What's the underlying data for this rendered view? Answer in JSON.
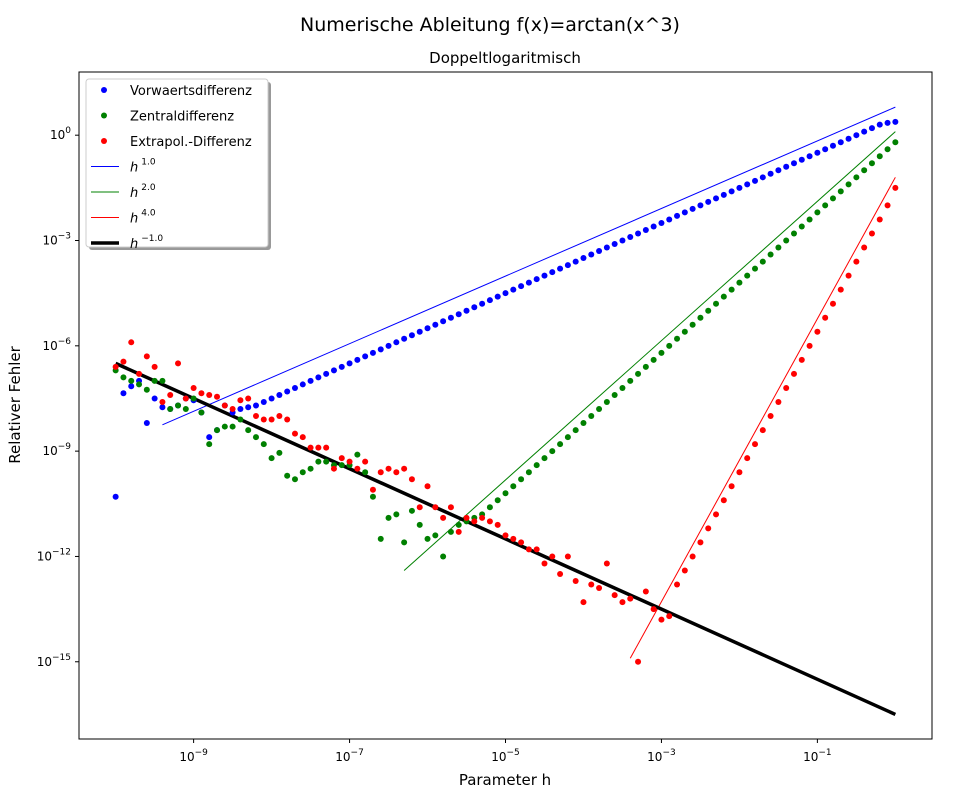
{
  "chart_data": {
    "type": "scatter",
    "suptitle": "Numerische Ableitung f(x)=arctan(x^3)",
    "title": "Doppeltlogaritmisch",
    "xlabel": "Parameter h",
    "ylabel": "Relativer Fehler",
    "xscale": "log",
    "yscale": "log",
    "xlim_log10": [
      -10.47,
      0.47
    ],
    "ylim_log10": [
      -17.2,
      1.8
    ],
    "xticks": [
      {
        "exp": -9,
        "label": "10",
        "sup": "−9"
      },
      {
        "exp": -7,
        "label": "10",
        "sup": "−7"
      },
      {
        "exp": -5,
        "label": "10",
        "sup": "−5"
      },
      {
        "exp": -3,
        "label": "10",
        "sup": "−3"
      },
      {
        "exp": -1,
        "label": "10",
        "sup": "−1"
      }
    ],
    "yticks": [
      {
        "exp": 0,
        "label": "10",
        "sup": "0"
      },
      {
        "exp": -3,
        "label": "10",
        "sup": "−3"
      },
      {
        "exp": -6,
        "label": "10",
        "sup": "−6"
      },
      {
        "exp": -9,
        "label": "10",
        "sup": "−9"
      },
      {
        "exp": -12,
        "label": "10",
        "sup": "−12"
      },
      {
        "exp": -15,
        "label": "10",
        "sup": "−15"
      }
    ],
    "grid": false,
    "legend_position": "upper-left",
    "series": [
      {
        "name": "Vorwaertsdifferenz",
        "kind": "points",
        "color": "#0000ff",
        "log_x": [
          -10.0,
          -9.9,
          -9.8,
          -9.7,
          -9.6,
          -9.5,
          -9.4,
          -9.3,
          -9.2,
          -9.1,
          -9.0,
          -8.9,
          -8.8,
          -8.7,
          -8.6,
          -8.5,
          -8.4,
          -8.3,
          -8.2,
          -8.1,
          -8.0,
          -7.9,
          -7.8,
          -7.7,
          -7.6,
          -7.5,
          -7.4,
          -7.3,
          -7.2,
          -7.1,
          -7.0,
          -6.9,
          -6.8,
          -6.7,
          -6.6,
          -6.5,
          -6.4,
          -6.3,
          -6.2,
          -6.1,
          -6.0,
          -5.9,
          -5.8,
          -5.7,
          -5.6,
          -5.5,
          -5.4,
          -5.3,
          -5.2,
          -5.1,
          -5.0,
          -4.9,
          -4.8,
          -4.7,
          -4.6,
          -4.5,
          -4.4,
          -4.3,
          -4.2,
          -4.1,
          -4.0,
          -3.9,
          -3.8,
          -3.7,
          -3.6,
          -3.5,
          -3.4,
          -3.3,
          -3.2,
          -3.1,
          -3.0,
          -2.9,
          -2.8,
          -2.7,
          -2.6,
          -2.5,
          -2.4,
          -2.3,
          -2.2,
          -2.1,
          -2.0,
          -1.9,
          -1.8,
          -1.7,
          -1.6,
          -1.5,
          -1.4,
          -1.3,
          -1.2,
          -1.1,
          -1.0,
          -0.9,
          -0.8,
          -0.7,
          -0.6,
          -0.5,
          -0.4,
          -0.3,
          -0.2,
          -0.1,
          0.0
        ],
        "log_y": [
          -10.3,
          -7.35,
          -7.15,
          -7.0,
          -8.2,
          -7.5,
          -7.75,
          -7.8,
          -7.7,
          -7.5,
          -7.55,
          -7.9,
          -8.6,
          -8.4,
          -7.7,
          -7.9,
          -7.8,
          -7.75,
          -7.7,
          -7.6,
          -7.5,
          -7.4,
          -7.3,
          -7.2,
          -7.1,
          -7.0,
          -6.9,
          -6.8,
          -6.7,
          -6.6,
          -6.5,
          -6.4,
          -6.3,
          -6.2,
          -6.1,
          -6.0,
          -5.9,
          -5.8,
          -5.7,
          -5.6,
          -5.5,
          -5.4,
          -5.3,
          -5.2,
          -5.1,
          -5.0,
          -4.9,
          -4.8,
          -4.7,
          -4.6,
          -4.5,
          -4.4,
          -4.3,
          -4.2,
          -4.1,
          -4.0,
          -3.9,
          -3.8,
          -3.7,
          -3.6,
          -3.5,
          -3.4,
          -3.3,
          -3.2,
          -3.1,
          -3.0,
          -2.9,
          -2.8,
          -2.7,
          -2.6,
          -2.5,
          -2.4,
          -2.3,
          -2.2,
          -2.1,
          -2.0,
          -1.9,
          -1.8,
          -1.7,
          -1.6,
          -1.5,
          -1.4,
          -1.3,
          -1.2,
          -1.1,
          -1.0,
          -0.9,
          -0.8,
          -0.7,
          -0.6,
          -0.5,
          -0.4,
          -0.3,
          -0.2,
          -0.1,
          0.0,
          0.1,
          0.2,
          0.3,
          0.35,
          0.38
        ]
      },
      {
        "name": "Zentraldifferenz",
        "kind": "points",
        "color": "#008000",
        "log_x": [
          -10.0,
          -9.9,
          -9.8,
          -9.7,
          -9.6,
          -9.5,
          -9.4,
          -9.3,
          -9.2,
          -9.1,
          -9.0,
          -8.9,
          -8.8,
          -8.7,
          -8.6,
          -8.5,
          -8.4,
          -8.3,
          -8.2,
          -8.1,
          -8.0,
          -7.9,
          -7.8,
          -7.7,
          -7.6,
          -7.5,
          -7.4,
          -7.3,
          -7.2,
          -7.1,
          -7.0,
          -6.9,
          -6.8,
          -6.7,
          -6.6,
          -6.5,
          -6.4,
          -6.3,
          -6.2,
          -6.1,
          -6.0,
          -5.9,
          -5.8,
          -5.7,
          -5.6,
          -5.5,
          -5.4,
          -5.3,
          -5.2,
          -5.1,
          -5.0,
          -4.9,
          -4.8,
          -4.7,
          -4.6,
          -4.5,
          -4.4,
          -4.3,
          -4.2,
          -4.1,
          -4.0,
          -3.9,
          -3.8,
          -3.7,
          -3.6,
          -3.5,
          -3.4,
          -3.3,
          -3.2,
          -3.1,
          -3.0,
          -2.9,
          -2.8,
          -2.7,
          -2.6,
          -2.5,
          -2.4,
          -2.3,
          -2.2,
          -2.1,
          -2.0,
          -1.9,
          -1.8,
          -1.7,
          -1.6,
          -1.5,
          -1.4,
          -1.3,
          -1.2,
          -1.1,
          -1.0,
          -0.9,
          -0.8,
          -0.7,
          -0.6,
          -0.5,
          -0.4,
          -0.3,
          -0.2,
          -0.1,
          0.0
        ],
        "log_y": [
          -6.7,
          -6.9,
          -7.0,
          -7.1,
          -7.25,
          -7.0,
          -7.0,
          -7.8,
          -7.7,
          -7.8,
          -7.5,
          -7.9,
          -8.8,
          -8.4,
          -8.3,
          -8.3,
          -8.1,
          -8.4,
          -8.6,
          -8.8,
          -9.2,
          -9.05,
          -9.7,
          -9.8,
          -9.6,
          -9.5,
          -9.3,
          -9.3,
          -9.4,
          -9.4,
          -9.4,
          -9.1,
          -9.6,
          -10.3,
          -11.5,
          -10.9,
          -10.8,
          -11.6,
          -10.7,
          -11.1,
          -11.5,
          -11.4,
          -12.0,
          -11.3,
          -11.1,
          -11.0,
          -10.9,
          -10.8,
          -10.6,
          -10.4,
          -10.2,
          -10.0,
          -9.8,
          -9.6,
          -9.4,
          -9.2,
          -9.0,
          -8.8,
          -8.6,
          -8.4,
          -8.2,
          -8.0,
          -7.8,
          -7.6,
          -7.4,
          -7.2,
          -7.0,
          -6.8,
          -6.6,
          -6.4,
          -6.2,
          -6.0,
          -5.8,
          -5.6,
          -5.4,
          -5.2,
          -5.0,
          -4.8,
          -4.6,
          -4.4,
          -4.2,
          -4.0,
          -3.8,
          -3.6,
          -3.4,
          -3.2,
          -3.0,
          -2.8,
          -2.6,
          -2.4,
          -2.2,
          -2.0,
          -1.8,
          -1.6,
          -1.4,
          -1.2,
          -1.0,
          -0.8,
          -0.6,
          -0.4,
          -0.2
        ]
      },
      {
        "name": "Extrapol.-Differenz",
        "kind": "points",
        "color": "#ff0000",
        "log_x": [
          -10.0,
          -9.9,
          -9.8,
          -9.7,
          -9.6,
          -9.5,
          -9.4,
          -9.3,
          -9.2,
          -9.1,
          -9.0,
          -8.9,
          -8.8,
          -8.7,
          -8.6,
          -8.5,
          -8.4,
          -8.3,
          -8.2,
          -8.1,
          -8.0,
          -7.9,
          -7.8,
          -7.7,
          -7.6,
          -7.5,
          -7.4,
          -7.3,
          -7.2,
          -7.1,
          -7.0,
          -6.9,
          -6.8,
          -6.7,
          -6.6,
          -6.5,
          -6.4,
          -6.3,
          -6.2,
          -6.1,
          -6.0,
          -5.9,
          -5.8,
          -5.7,
          -5.6,
          -5.5,
          -5.4,
          -5.3,
          -5.2,
          -5.1,
          -5.0,
          -4.9,
          -4.8,
          -4.7,
          -4.6,
          -4.5,
          -4.4,
          -4.3,
          -4.2,
          -4.1,
          -4.0,
          -3.9,
          -3.8,
          -3.7,
          -3.6,
          -3.5,
          -3.4,
          -3.3,
          -3.2,
          -3.1,
          -3.0,
          -2.9,
          -2.8,
          -2.7,
          -2.6,
          -2.5,
          -2.4,
          -2.3,
          -2.2,
          -2.1,
          -2.0,
          -1.9,
          -1.8,
          -1.7,
          -1.6,
          -1.5,
          -1.4,
          -1.3,
          -1.2,
          -1.1,
          -1.0,
          -0.9,
          -0.8,
          -0.7,
          -0.6,
          -0.5,
          -0.4,
          -0.3,
          -0.2,
          -0.1,
          0.0
        ],
        "log_y": [
          -6.6,
          -6.45,
          -5.9,
          -6.8,
          -6.3,
          -6.6,
          -7.6,
          -7.4,
          -6.5,
          -7.5,
          -7.2,
          -7.35,
          -7.4,
          -7.45,
          -7.7,
          -7.8,
          -7.55,
          -7.5,
          -8.0,
          -8.1,
          -8.1,
          -8.0,
          -8.1,
          -8.5,
          -8.6,
          -8.9,
          -8.9,
          -8.9,
          -9.5,
          -9.2,
          -9.3,
          -9.5,
          -9.3,
          -10.1,
          -9.6,
          -9.5,
          -9.6,
          -9.5,
          -9.8,
          -10.6,
          -10.0,
          -10.6,
          -10.9,
          -10.6,
          -11.3,
          -10.9,
          -11.0,
          -10.9,
          -11.0,
          -11.1,
          -11.4,
          -11.5,
          -11.6,
          -11.8,
          -11.8,
          -12.2,
          -12.0,
          -12.5,
          -12.0,
          -12.7,
          -13.3,
          -12.8,
          -12.9,
          -12.2,
          -13.1,
          -13.3,
          -13.2,
          -15.0,
          -13.0,
          -13.5,
          -13.8,
          -13.7,
          -12.8,
          -12.4,
          -12.0,
          -11.6,
          -11.2,
          -10.8,
          -10.4,
          -10.0,
          -9.6,
          -9.2,
          -8.8,
          -8.4,
          -8.0,
          -7.6,
          -7.2,
          -6.8,
          -6.4,
          -6.0,
          -5.6,
          -5.2,
          -4.8,
          -4.4,
          -4.0,
          -3.6,
          -3.2,
          -2.8,
          -2.4,
          -2.0,
          -1.5
        ]
      },
      {
        "name": "h^1.0",
        "legend_base": "h",
        "legend_exp": "1.0",
        "kind": "line",
        "color": "#0000ff",
        "width": 1,
        "log_x": [
          -9.4,
          0.0
        ],
        "log_y": [
          -8.25,
          0.8
        ]
      },
      {
        "name": "h^2.0",
        "legend_base": "h",
        "legend_exp": "2.0",
        "kind": "line",
        "color": "#008000",
        "width": 1,
        "log_x": [
          -6.3,
          0.0
        ],
        "log_y": [
          -12.4,
          0.1
        ]
      },
      {
        "name": "h^4.0",
        "legend_base": "h",
        "legend_exp": "4.0",
        "kind": "line",
        "color": "#ff0000",
        "width": 1,
        "log_x": [
          -3.4,
          0.0
        ],
        "log_y": [
          -14.9,
          -1.2
        ]
      },
      {
        "name": "h^-1.0",
        "legend_base": "h",
        "legend_exp": "−1.0",
        "kind": "line",
        "color": "#000000",
        "width": 3.5,
        "log_x": [
          -10.0,
          0.0
        ],
        "log_y": [
          -6.5,
          -16.5
        ]
      }
    ]
  }
}
